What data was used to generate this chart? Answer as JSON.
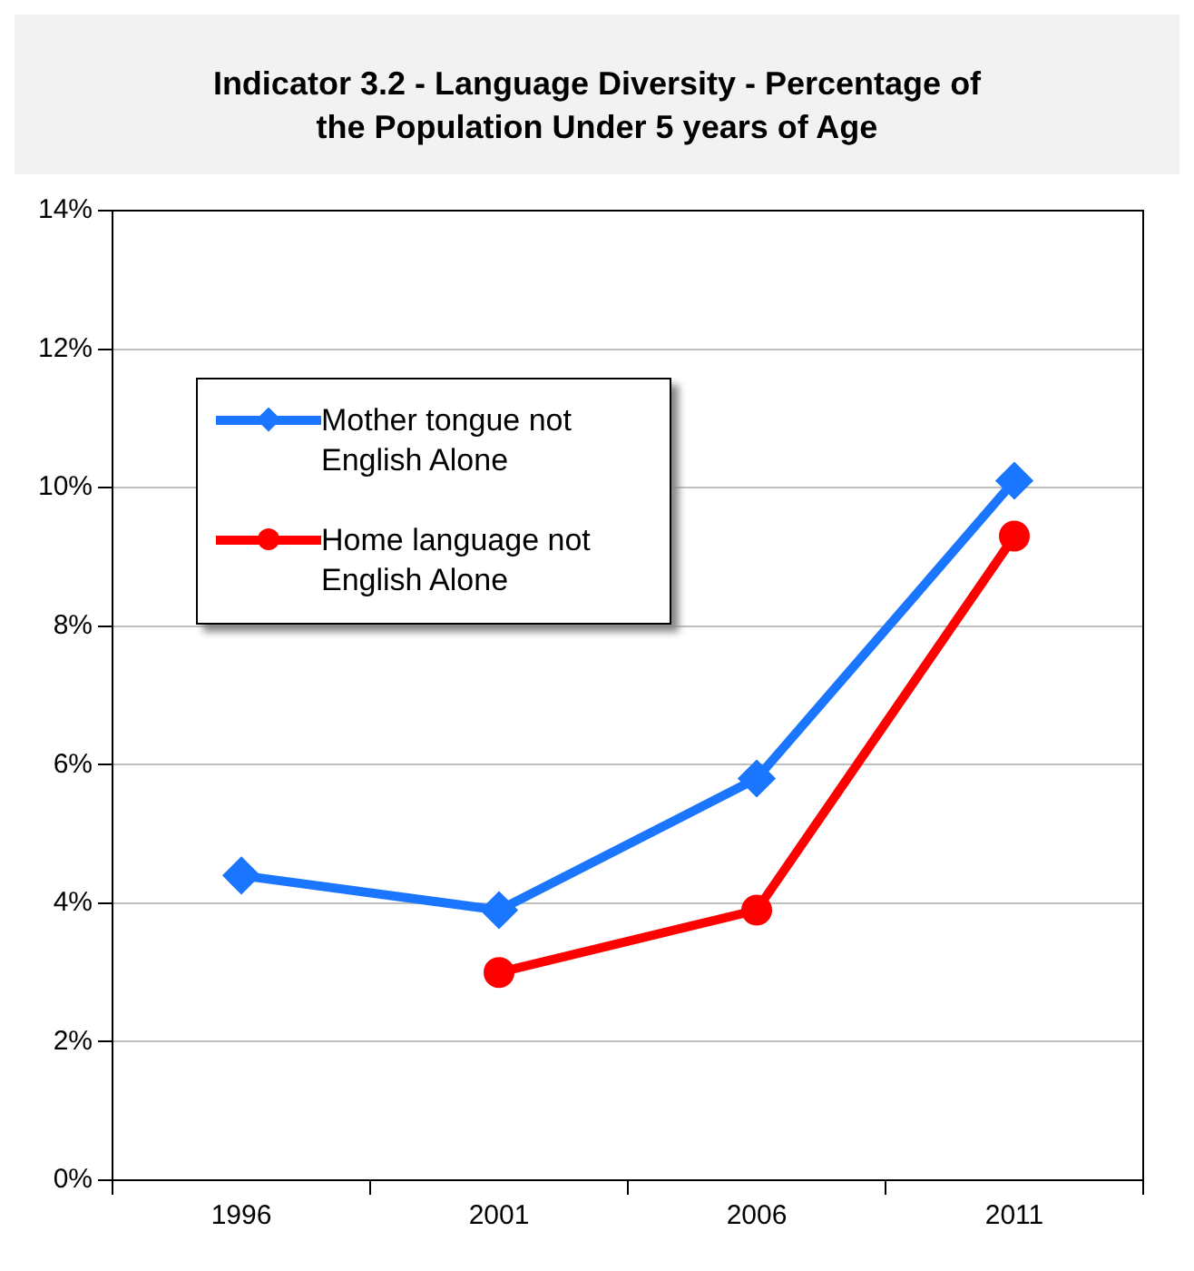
{
  "chart_data": {
    "type": "line",
    "title": "Indicator 3.2 - Language Diversity - Percentage of the Population Under 5 years of Age",
    "categories": [
      "1996",
      "2001",
      "2006",
      "2011"
    ],
    "series": [
      {
        "name": "Mother tongue not English Alone",
        "color": "#1a75ff",
        "marker": "diamond",
        "values": [
          4.4,
          3.9,
          5.8,
          10.1
        ]
      },
      {
        "name": "Home language not English Alone",
        "color": "#ff0000",
        "marker": "circle",
        "values": [
          null,
          3.0,
          3.9,
          9.3
        ]
      }
    ],
    "ylim": [
      0,
      14
    ],
    "yticks": [
      {
        "value": 0,
        "label": "0%"
      },
      {
        "value": 2,
        "label": "2%"
      },
      {
        "value": 4,
        "label": "4%"
      },
      {
        "value": 6,
        "label": "6%"
      },
      {
        "value": 8,
        "label": "8%"
      },
      {
        "value": 10,
        "label": "10%"
      },
      {
        "value": 12,
        "label": "12%"
      },
      {
        "value": 14,
        "label": "14%"
      }
    ],
    "grid": "y",
    "legend": "top left",
    "line_style": "solid"
  }
}
